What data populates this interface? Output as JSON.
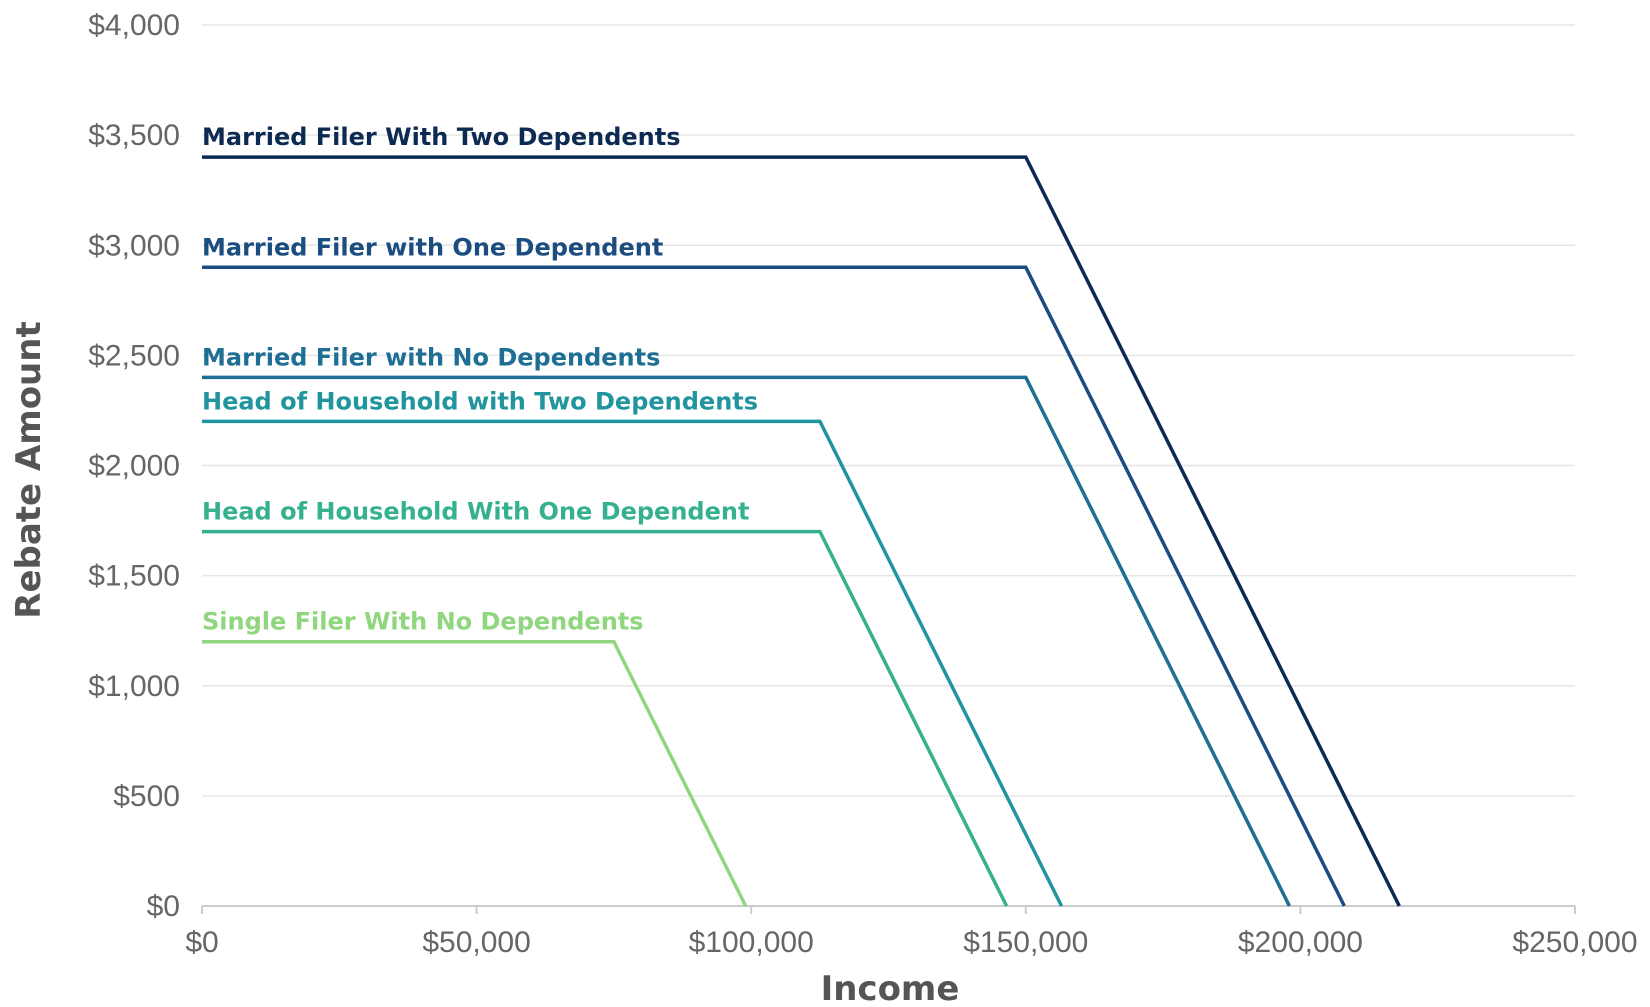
{
  "chart_data": {
    "type": "line",
    "title": "",
    "xlabel": "Income",
    "ylabel": "Rebate Amount",
    "xlim": [
      0,
      250000
    ],
    "ylim": [
      0,
      4000
    ],
    "grid": true,
    "legend": "inline labels above each line",
    "x_ticks": [
      {
        "value": 0,
        "label": "$0"
      },
      {
        "value": 50000,
        "label": "$50,000"
      },
      {
        "value": 100000,
        "label": "$100,000"
      },
      {
        "value": 150000,
        "label": "$150,000"
      },
      {
        "value": 200000,
        "label": "$200,000"
      },
      {
        "value": 250000,
        "label": "$250,000"
      }
    ],
    "y_ticks": [
      {
        "value": 0,
        "label": "$0"
      },
      {
        "value": 500,
        "label": "$500"
      },
      {
        "value": 1000,
        "label": "$1,000"
      },
      {
        "value": 1500,
        "label": "$1,500"
      },
      {
        "value": 2000,
        "label": "$2,000"
      },
      {
        "value": 2500,
        "label": "$2,500"
      },
      {
        "value": 3000,
        "label": "$3,000"
      },
      {
        "value": 3500,
        "label": "$3,500"
      },
      {
        "value": 4000,
        "label": "$4,000"
      }
    ],
    "series": [
      {
        "name": "Married Filer With Two Dependents",
        "color": "#0d2a52",
        "points": [
          [
            0,
            3400
          ],
          [
            150000,
            3400
          ],
          [
            218000,
            0
          ]
        ]
      },
      {
        "name": "Married Filer with One Dependent",
        "color": "#1b4d80",
        "points": [
          [
            0,
            2900
          ],
          [
            150000,
            2900
          ],
          [
            208000,
            0
          ]
        ]
      },
      {
        "name": "Married Filer with No Dependents",
        "color": "#1f6e93",
        "points": [
          [
            0,
            2400
          ],
          [
            150000,
            2400
          ],
          [
            198000,
            0
          ]
        ]
      },
      {
        "name": "Head of Household with Two Dependents",
        "color": "#21959e",
        "points": [
          [
            0,
            2200
          ],
          [
            112500,
            2200
          ],
          [
            156500,
            0
          ]
        ]
      },
      {
        "name": "Head of Household With One Dependent",
        "color": "#36b190",
        "points": [
          [
            0,
            1700
          ],
          [
            112500,
            1700
          ],
          [
            146500,
            0
          ]
        ]
      },
      {
        "name": "Single Filer With No Dependents",
        "color": "#8fd67e",
        "points": [
          [
            0,
            1200
          ],
          [
            75000,
            1200
          ],
          [
            99000,
            0
          ]
        ]
      }
    ]
  }
}
